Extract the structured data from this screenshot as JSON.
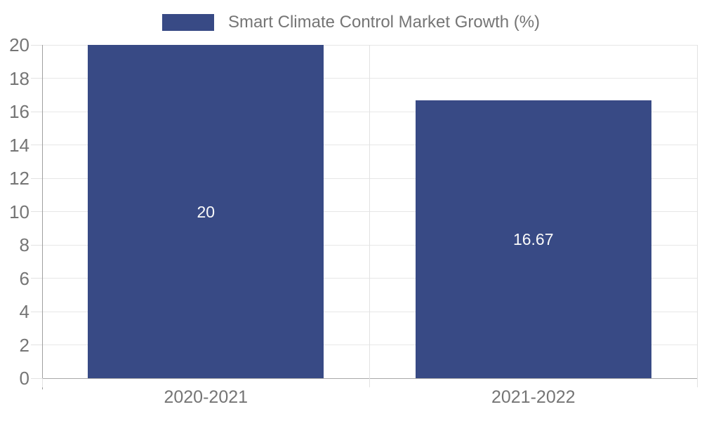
{
  "legend": {
    "label": "Smart Climate Control Market Growth (%)",
    "position": "top-center"
  },
  "chart_data": {
    "type": "bar",
    "title": "Smart Climate Control Market Growth (%)",
    "categories": [
      "2020-2021",
      "2021-2022"
    ],
    "values": [
      20,
      16.67
    ],
    "value_labels": [
      "20",
      "16.67"
    ],
    "xlabel": "",
    "ylabel": "",
    "ylim": [
      0,
      20
    ],
    "yticks": [
      0,
      2,
      4,
      6,
      8,
      10,
      12,
      14,
      16,
      18,
      20
    ],
    "grid": true,
    "legend_position": "top-center",
    "colors": {
      "bar": "#384a85",
      "grid": "#e7e7e7",
      "boundary_grid": "#e2e2e2",
      "axis_spine": "#9f9f9f",
      "tick_text": "#757575",
      "legend_text": "#757575",
      "bar_value_text": "#fafafa",
      "background": "#ffffff"
    }
  }
}
